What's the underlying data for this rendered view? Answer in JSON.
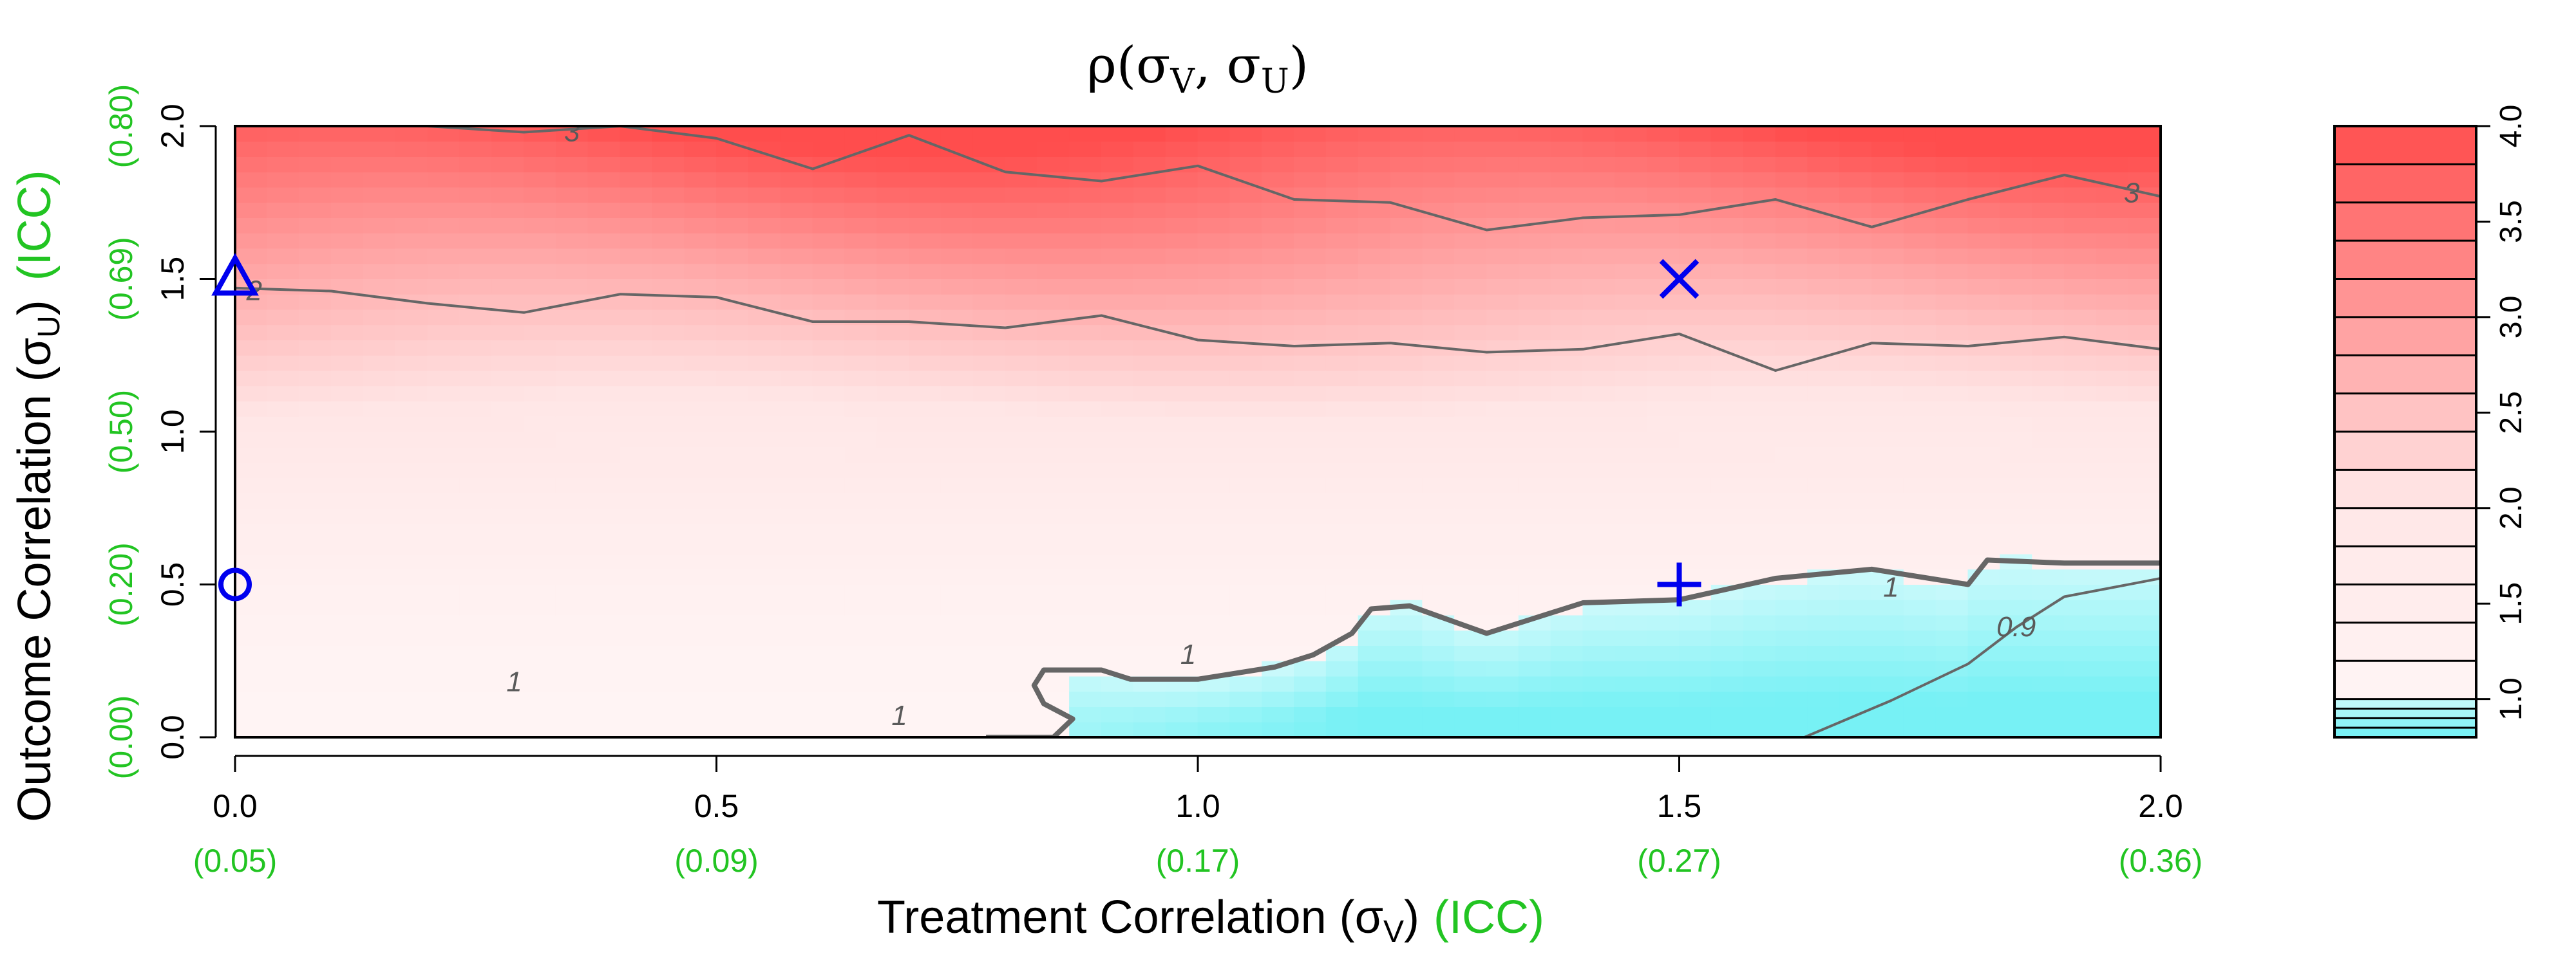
{
  "chart_data": {
    "type": "heatmap",
    "title": "ρ(σ",
    "title_sub1": "V",
    "title_sep": ", σ",
    "title_sub2": "U",
    "title_close": ")",
    "xlabel": "Treatment Correlation (σ",
    "xlabel_sub": "V",
    "xlabel_close": ")",
    "xlabel_icc": "(ICC)",
    "ylabel": "Outcome Correlation (σ",
    "ylabel_sub": "U",
    "ylabel_close": ")",
    "ylabel_icc": "(ICC)",
    "xlim": [
      0,
      2
    ],
    "ylim": [
      0,
      2
    ],
    "x_ticks": [
      {
        "value": 0.0,
        "label": "0.0",
        "icc": "(0.05)"
      },
      {
        "value": 0.5,
        "label": "0.5",
        "icc": "(0.09)"
      },
      {
        "value": 1.0,
        "label": "1.0",
        "icc": "(0.17)"
      },
      {
        "value": 1.5,
        "label": "1.5",
        "icc": "(0.27)"
      },
      {
        "value": 2.0,
        "label": "2.0",
        "icc": "(0.36)"
      }
    ],
    "y_ticks": [
      {
        "value": 0.0,
        "label": "0.0",
        "icc": "(0.00)"
      },
      {
        "value": 0.5,
        "label": "0.5",
        "icc": "(0.20)"
      },
      {
        "value": 1.0,
        "label": "1.0",
        "icc": "(0.50)"
      },
      {
        "value": 1.5,
        "label": "1.5",
        "icc": "(0.69)"
      },
      {
        "value": 2.0,
        "label": "2.0",
        "icc": "(0.80)"
      }
    ],
    "colorbar": {
      "range": [
        0.8,
        4.0
      ],
      "tick_labels": [
        "1.0",
        "1.5",
        "2.0",
        "2.5",
        "3.0",
        "3.5",
        "4.0"
      ],
      "tick_values": [
        1.0,
        1.5,
        2.0,
        2.5,
        3.0,
        3.5,
        4.0
      ],
      "levels": [
        0.8,
        0.85,
        0.9,
        0.95,
        1.0,
        1.2,
        1.4,
        1.6,
        1.8,
        2.0,
        2.2,
        2.4,
        2.6,
        2.8,
        3.0,
        3.2,
        3.4,
        3.6,
        3.8,
        4.0
      ]
    },
    "grid_x": [
      0.0,
      0.1,
      0.2,
      0.3,
      0.4,
      0.5,
      0.6,
      0.7,
      0.8,
      0.9,
      1.0,
      1.1,
      1.2,
      1.3,
      1.4,
      1.5,
      1.6,
      1.7,
      1.8,
      1.9,
      2.0
    ],
    "grid_y": [
      0.0,
      0.1,
      0.2,
      0.3,
      0.4,
      0.5,
      0.6,
      0.7,
      0.8,
      0.9,
      1.0,
      1.1,
      1.2,
      1.3,
      1.4,
      1.5,
      1.6,
      1.7,
      1.8,
      1.9,
      2.0
    ],
    "contours": [
      {
        "level": "3",
        "label_at": [
          [
            0.35,
            1.98
          ],
          [
            1.97,
            1.78
          ]
        ],
        "points": [
          [
            0.0,
            2.0
          ],
          [
            0.2,
            2.0
          ],
          [
            0.3,
            1.98
          ],
          [
            0.4,
            2.0
          ],
          [
            0.5,
            1.96
          ],
          [
            0.6,
            1.86
          ],
          [
            0.7,
            1.97
          ],
          [
            0.8,
            1.85
          ],
          [
            0.9,
            1.82
          ],
          [
            1.0,
            1.87
          ],
          [
            1.1,
            1.76
          ],
          [
            1.2,
            1.75
          ],
          [
            1.3,
            1.66
          ],
          [
            1.4,
            1.7
          ],
          [
            1.5,
            1.71
          ],
          [
            1.6,
            1.76
          ],
          [
            1.7,
            1.67
          ],
          [
            1.8,
            1.76
          ],
          [
            1.9,
            1.84
          ],
          [
            2.0,
            1.77
          ]
        ]
      },
      {
        "level": "2",
        "label_at": [
          [
            0.02,
            1.46
          ]
        ],
        "points": [
          [
            0.0,
            1.47
          ],
          [
            0.1,
            1.46
          ],
          [
            0.2,
            1.42
          ],
          [
            0.3,
            1.39
          ],
          [
            0.4,
            1.45
          ],
          [
            0.5,
            1.44
          ],
          [
            0.6,
            1.36
          ],
          [
            0.7,
            1.36
          ],
          [
            0.8,
            1.34
          ],
          [
            0.9,
            1.38
          ],
          [
            1.0,
            1.3
          ],
          [
            1.1,
            1.28
          ],
          [
            1.2,
            1.29
          ],
          [
            1.3,
            1.26
          ],
          [
            1.4,
            1.27
          ],
          [
            1.5,
            1.32
          ],
          [
            1.6,
            1.2
          ],
          [
            1.7,
            1.29
          ],
          [
            1.8,
            1.28
          ],
          [
            1.9,
            1.31
          ],
          [
            2.0,
            1.27
          ]
        ]
      },
      {
        "level": "1",
        "label_at": [
          [
            1.72,
            0.49
          ],
          [
            0.29,
            0.18
          ],
          [
            0.69,
            0.07
          ],
          [
            0.99,
            0.27
          ]
        ],
        "points": [
          [
            0.78,
            0.0
          ],
          [
            0.85,
            0.0
          ],
          [
            0.87,
            0.06
          ],
          [
            0.84,
            0.11
          ],
          [
            0.83,
            0.17
          ],
          [
            0.84,
            0.22
          ],
          [
            0.9,
            0.22
          ],
          [
            0.93,
            0.19
          ],
          [
            1.0,
            0.19
          ],
          [
            1.08,
            0.23
          ],
          [
            1.12,
            0.27
          ],
          [
            1.16,
            0.34
          ],
          [
            1.18,
            0.42
          ],
          [
            1.22,
            0.43
          ],
          [
            1.3,
            0.34
          ],
          [
            1.4,
            0.44
          ],
          [
            1.5,
            0.45
          ],
          [
            1.6,
            0.52
          ],
          [
            1.7,
            0.55
          ],
          [
            1.8,
            0.5
          ],
          [
            1.82,
            0.58
          ],
          [
            1.9,
            0.57
          ],
          [
            2.0,
            0.57
          ]
        ]
      },
      {
        "level": "0.9",
        "label_at": [
          [
            1.85,
            0.36
          ]
        ],
        "points": [
          [
            1.63,
            0.0
          ],
          [
            1.72,
            0.12
          ],
          [
            1.8,
            0.24
          ],
          [
            1.85,
            0.36
          ],
          [
            1.9,
            0.46
          ],
          [
            2.0,
            0.52
          ]
        ]
      }
    ],
    "markers": [
      {
        "shape": "triangle",
        "x": 0.0,
        "y": 1.5
      },
      {
        "shape": "circle",
        "x": 0.0,
        "y": 0.5
      },
      {
        "shape": "x",
        "x": 1.5,
        "y": 1.5
      },
      {
        "shape": "plus",
        "x": 1.5,
        "y": 0.5
      }
    ],
    "colors": {
      "high": "#ff4d4d",
      "mid": "#ffe6e6",
      "one": "#fff4f4",
      "low": "#6ef0f4",
      "marker": "#0000ee",
      "contour": "#666666",
      "icc": "#22c422"
    }
  }
}
